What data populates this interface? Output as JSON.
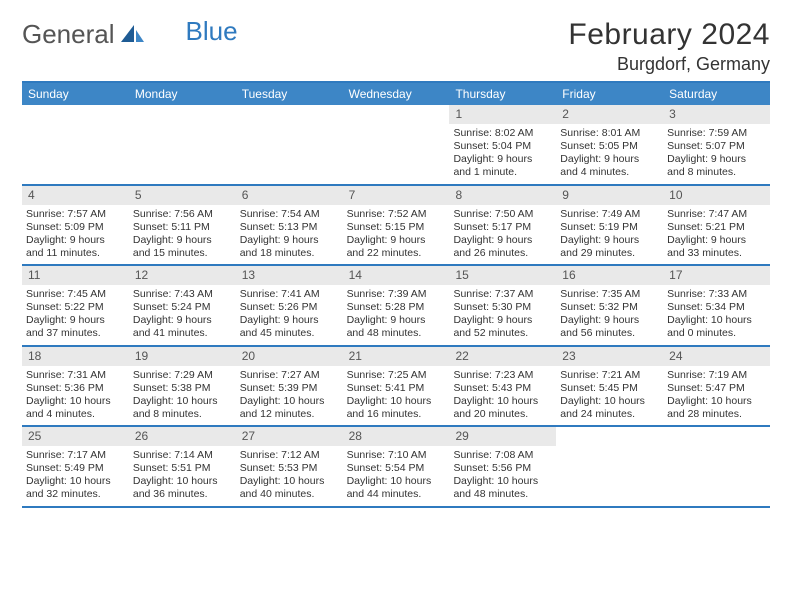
{
  "logo": {
    "general": "General",
    "blue": "Blue"
  },
  "title": {
    "month": "February 2024",
    "location": "Burgdorf, Germany"
  },
  "colors": {
    "header_bar": "#3d86c6",
    "border": "#2f7abf",
    "daynum_bg": "#e9e9e9",
    "text": "#333333",
    "logo_gray": "#555555",
    "logo_blue": "#2f7abf",
    "background": "#ffffff"
  },
  "days_of_week": [
    "Sunday",
    "Monday",
    "Tuesday",
    "Wednesday",
    "Thursday",
    "Friday",
    "Saturday"
  ],
  "layout": {
    "weeks": 5,
    "first_day_col": 4,
    "last_date": 29
  },
  "cells": {
    "1": {
      "sunrise": "Sunrise: 8:02 AM",
      "sunset": "Sunset: 5:04 PM",
      "day1": "Daylight: 9 hours",
      "day2": "and 1 minute."
    },
    "2": {
      "sunrise": "Sunrise: 8:01 AM",
      "sunset": "Sunset: 5:05 PM",
      "day1": "Daylight: 9 hours",
      "day2": "and 4 minutes."
    },
    "3": {
      "sunrise": "Sunrise: 7:59 AM",
      "sunset": "Sunset: 5:07 PM",
      "day1": "Daylight: 9 hours",
      "day2": "and 8 minutes."
    },
    "4": {
      "sunrise": "Sunrise: 7:57 AM",
      "sunset": "Sunset: 5:09 PM",
      "day1": "Daylight: 9 hours",
      "day2": "and 11 minutes."
    },
    "5": {
      "sunrise": "Sunrise: 7:56 AM",
      "sunset": "Sunset: 5:11 PM",
      "day1": "Daylight: 9 hours",
      "day2": "and 15 minutes."
    },
    "6": {
      "sunrise": "Sunrise: 7:54 AM",
      "sunset": "Sunset: 5:13 PM",
      "day1": "Daylight: 9 hours",
      "day2": "and 18 minutes."
    },
    "7": {
      "sunrise": "Sunrise: 7:52 AM",
      "sunset": "Sunset: 5:15 PM",
      "day1": "Daylight: 9 hours",
      "day2": "and 22 minutes."
    },
    "8": {
      "sunrise": "Sunrise: 7:50 AM",
      "sunset": "Sunset: 5:17 PM",
      "day1": "Daylight: 9 hours",
      "day2": "and 26 minutes."
    },
    "9": {
      "sunrise": "Sunrise: 7:49 AM",
      "sunset": "Sunset: 5:19 PM",
      "day1": "Daylight: 9 hours",
      "day2": "and 29 minutes."
    },
    "10": {
      "sunrise": "Sunrise: 7:47 AM",
      "sunset": "Sunset: 5:21 PM",
      "day1": "Daylight: 9 hours",
      "day2": "and 33 minutes."
    },
    "11": {
      "sunrise": "Sunrise: 7:45 AM",
      "sunset": "Sunset: 5:22 PM",
      "day1": "Daylight: 9 hours",
      "day2": "and 37 minutes."
    },
    "12": {
      "sunrise": "Sunrise: 7:43 AM",
      "sunset": "Sunset: 5:24 PM",
      "day1": "Daylight: 9 hours",
      "day2": "and 41 minutes."
    },
    "13": {
      "sunrise": "Sunrise: 7:41 AM",
      "sunset": "Sunset: 5:26 PM",
      "day1": "Daylight: 9 hours",
      "day2": "and 45 minutes."
    },
    "14": {
      "sunrise": "Sunrise: 7:39 AM",
      "sunset": "Sunset: 5:28 PM",
      "day1": "Daylight: 9 hours",
      "day2": "and 48 minutes."
    },
    "15": {
      "sunrise": "Sunrise: 7:37 AM",
      "sunset": "Sunset: 5:30 PM",
      "day1": "Daylight: 9 hours",
      "day2": "and 52 minutes."
    },
    "16": {
      "sunrise": "Sunrise: 7:35 AM",
      "sunset": "Sunset: 5:32 PM",
      "day1": "Daylight: 9 hours",
      "day2": "and 56 minutes."
    },
    "17": {
      "sunrise": "Sunrise: 7:33 AM",
      "sunset": "Sunset: 5:34 PM",
      "day1": "Daylight: 10 hours",
      "day2": "and 0 minutes."
    },
    "18": {
      "sunrise": "Sunrise: 7:31 AM",
      "sunset": "Sunset: 5:36 PM",
      "day1": "Daylight: 10 hours",
      "day2": "and 4 minutes."
    },
    "19": {
      "sunrise": "Sunrise: 7:29 AM",
      "sunset": "Sunset: 5:38 PM",
      "day1": "Daylight: 10 hours",
      "day2": "and 8 minutes."
    },
    "20": {
      "sunrise": "Sunrise: 7:27 AM",
      "sunset": "Sunset: 5:39 PM",
      "day1": "Daylight: 10 hours",
      "day2": "and 12 minutes."
    },
    "21": {
      "sunrise": "Sunrise: 7:25 AM",
      "sunset": "Sunset: 5:41 PM",
      "day1": "Daylight: 10 hours",
      "day2": "and 16 minutes."
    },
    "22": {
      "sunrise": "Sunrise: 7:23 AM",
      "sunset": "Sunset: 5:43 PM",
      "day1": "Daylight: 10 hours",
      "day2": "and 20 minutes."
    },
    "23": {
      "sunrise": "Sunrise: 7:21 AM",
      "sunset": "Sunset: 5:45 PM",
      "day1": "Daylight: 10 hours",
      "day2": "and 24 minutes."
    },
    "24": {
      "sunrise": "Sunrise: 7:19 AM",
      "sunset": "Sunset: 5:47 PM",
      "day1": "Daylight: 10 hours",
      "day2": "and 28 minutes."
    },
    "25": {
      "sunrise": "Sunrise: 7:17 AM",
      "sunset": "Sunset: 5:49 PM",
      "day1": "Daylight: 10 hours",
      "day2": "and 32 minutes."
    },
    "26": {
      "sunrise": "Sunrise: 7:14 AM",
      "sunset": "Sunset: 5:51 PM",
      "day1": "Daylight: 10 hours",
      "day2": "and 36 minutes."
    },
    "27": {
      "sunrise": "Sunrise: 7:12 AM",
      "sunset": "Sunset: 5:53 PM",
      "day1": "Daylight: 10 hours",
      "day2": "and 40 minutes."
    },
    "28": {
      "sunrise": "Sunrise: 7:10 AM",
      "sunset": "Sunset: 5:54 PM",
      "day1": "Daylight: 10 hours",
      "day2": "and 44 minutes."
    },
    "29": {
      "sunrise": "Sunrise: 7:08 AM",
      "sunset": "Sunset: 5:56 PM",
      "day1": "Daylight: 10 hours",
      "day2": "and 48 minutes."
    }
  }
}
